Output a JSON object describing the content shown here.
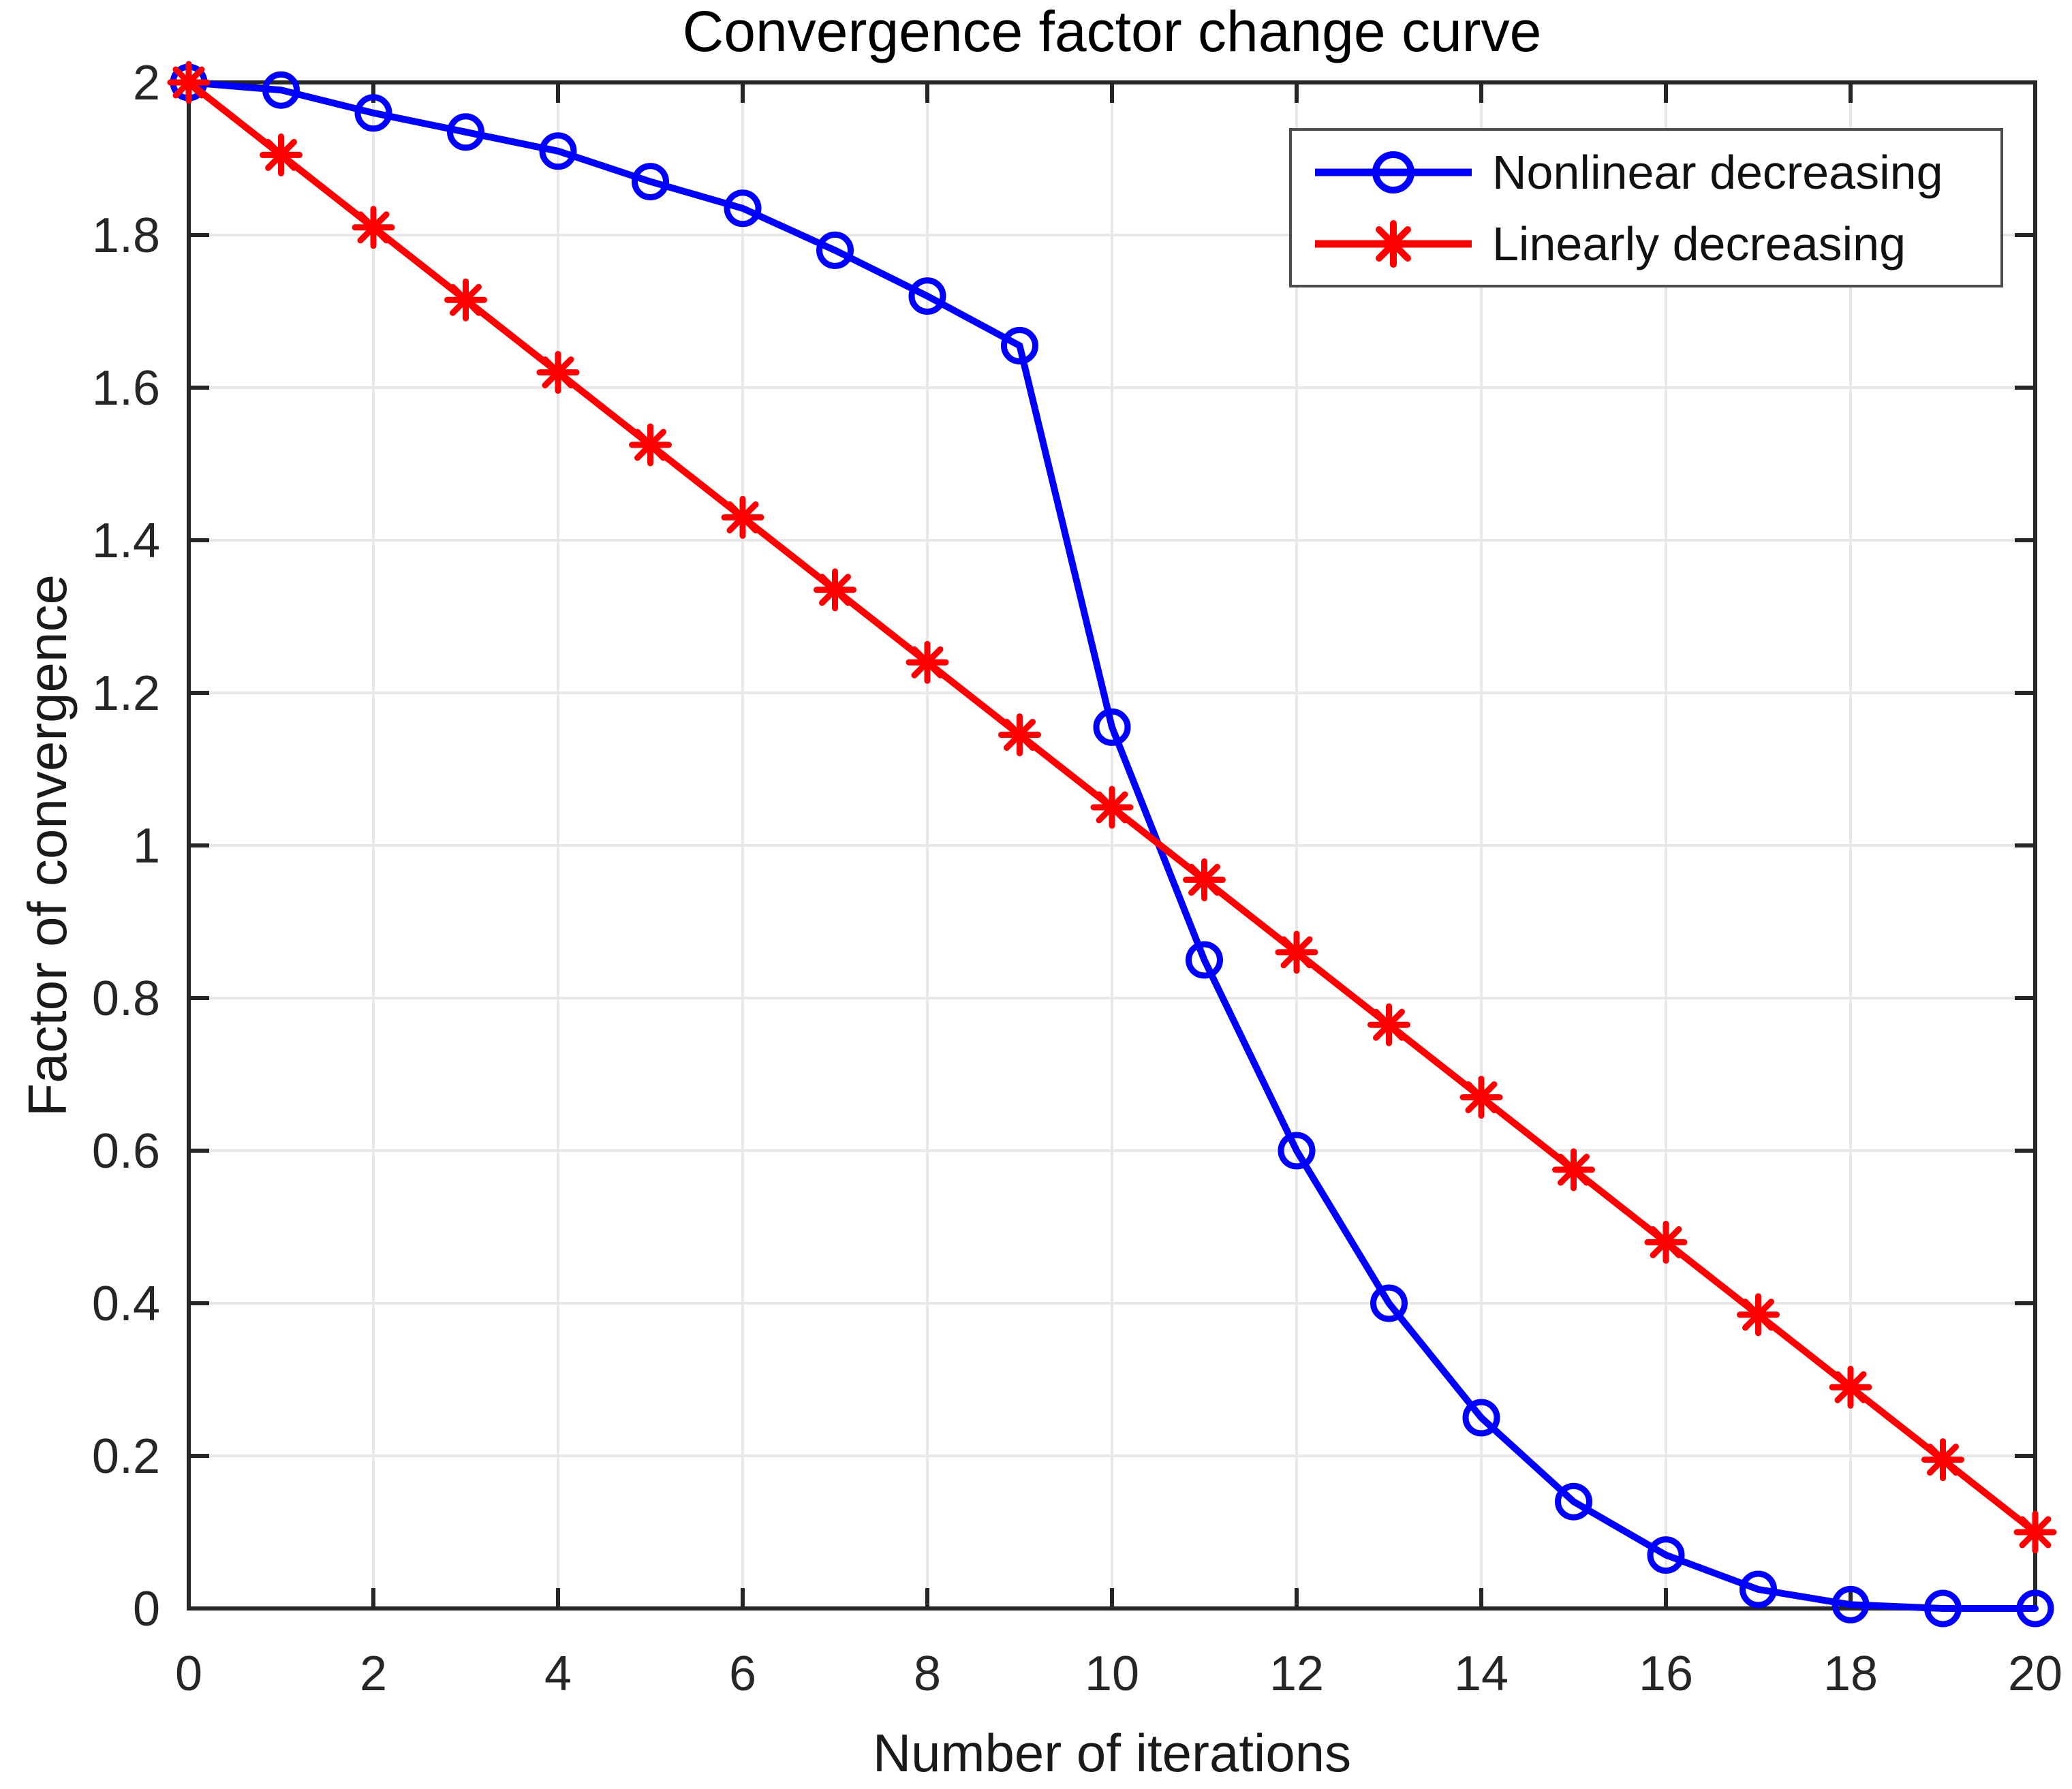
{
  "figure": {
    "background": "#FFFFFF"
  },
  "chart_data": {
    "type": "line",
    "title": "Convergence factor change curve",
    "xlabel": "Number of iterations",
    "ylabel": "Factor of convergence",
    "xlim": [
      0,
      20
    ],
    "ylim": [
      0,
      2
    ],
    "grid": true,
    "box": true,
    "legend_position": "top-right",
    "xticks": [
      0,
      2,
      4,
      6,
      8,
      10,
      12,
      14,
      16,
      18,
      20
    ],
    "xtick_labels": [
      "0",
      "2",
      "4",
      "6",
      "8",
      "10",
      "12",
      "14",
      "16",
      "18",
      "20"
    ],
    "yticks": [
      0,
      0.2,
      0.4,
      0.6,
      0.8,
      1,
      1.2,
      1.4,
      1.6,
      1.8,
      2
    ],
    "ytick_labels": [
      "0",
      "0.2",
      "0.4",
      "0.6",
      "0.8",
      "1",
      "1.2",
      "1.4",
      "1.6",
      "1.8",
      "2"
    ],
    "x": [
      0,
      1,
      2,
      3,
      4,
      5,
      6,
      7,
      8,
      9,
      10,
      11,
      12,
      13,
      14,
      15,
      16,
      17,
      18,
      19,
      20
    ],
    "series": [
      {
        "name": "Nonlinear decreasing",
        "color": "#0000FF",
        "marker": "circle",
        "values": [
          2.0,
          1.99,
          1.96,
          1.935,
          1.91,
          1.87,
          1.835,
          1.78,
          1.72,
          1.655,
          1.155,
          0.85,
          0.6,
          0.4,
          0.25,
          0.14,
          0.07,
          0.025,
          0.005,
          0.0,
          0.0
        ]
      },
      {
        "name": "Linearly decreasing",
        "color": "#FF0000",
        "marker": "asterisk",
        "values": [
          2.0,
          1.905,
          1.81,
          1.715,
          1.62,
          1.525,
          1.43,
          1.335,
          1.24,
          1.145,
          1.05,
          0.955,
          0.86,
          0.765,
          0.67,
          0.575,
          0.48,
          0.385,
          0.29,
          0.195,
          0.1
        ]
      }
    ],
    "colors": {
      "grid": "#E8E8E8",
      "axis": "#262626",
      "tick_label": "#262626",
      "title": "#000000"
    }
  }
}
